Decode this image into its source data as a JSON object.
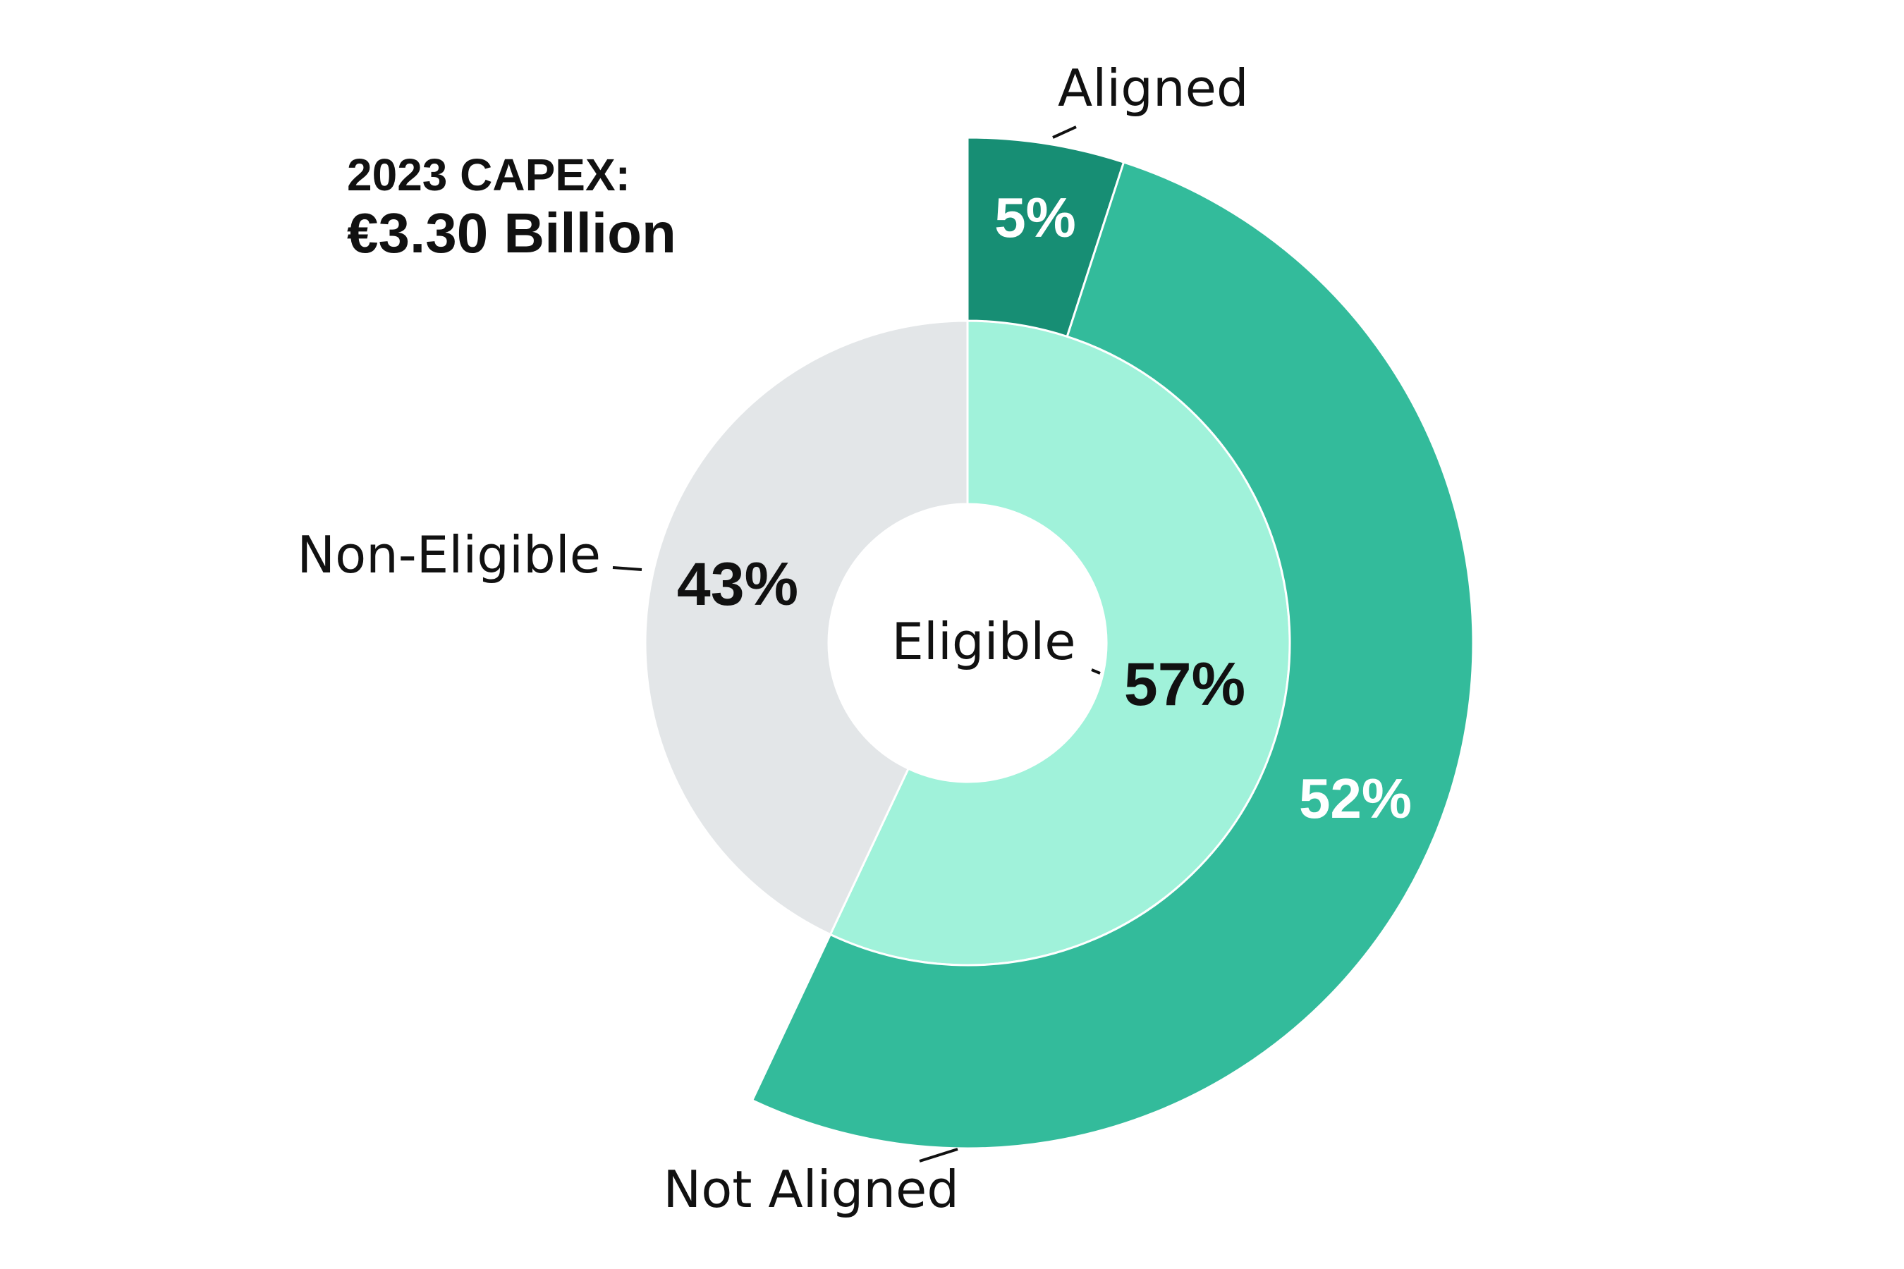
{
  "header": {
    "title": "2023 CAPEX:",
    "total": "€3.30 Billion"
  },
  "chart_data": {
    "type": "pie",
    "rings": [
      {
        "ring": "inner",
        "slices": [
          {
            "label": "Eligible",
            "value": 57,
            "value_label": "57%",
            "color": "#a0f2da",
            "text_color": "#111111"
          },
          {
            "label": "Non-Eligible",
            "value": 43,
            "value_label": "43%",
            "color": "#e3e6e8",
            "text_color": "#111111"
          }
        ]
      },
      {
        "ring": "outer",
        "slices": [
          {
            "label": "Aligned",
            "value": 5,
            "value_label": "5%",
            "color": "#178e74",
            "text_color": "#ffffff"
          },
          {
            "label": "Not Aligned",
            "value": 52,
            "value_label": "52%",
            "color": "#33bb9b",
            "text_color": "#ffffff"
          }
        ]
      }
    ]
  }
}
